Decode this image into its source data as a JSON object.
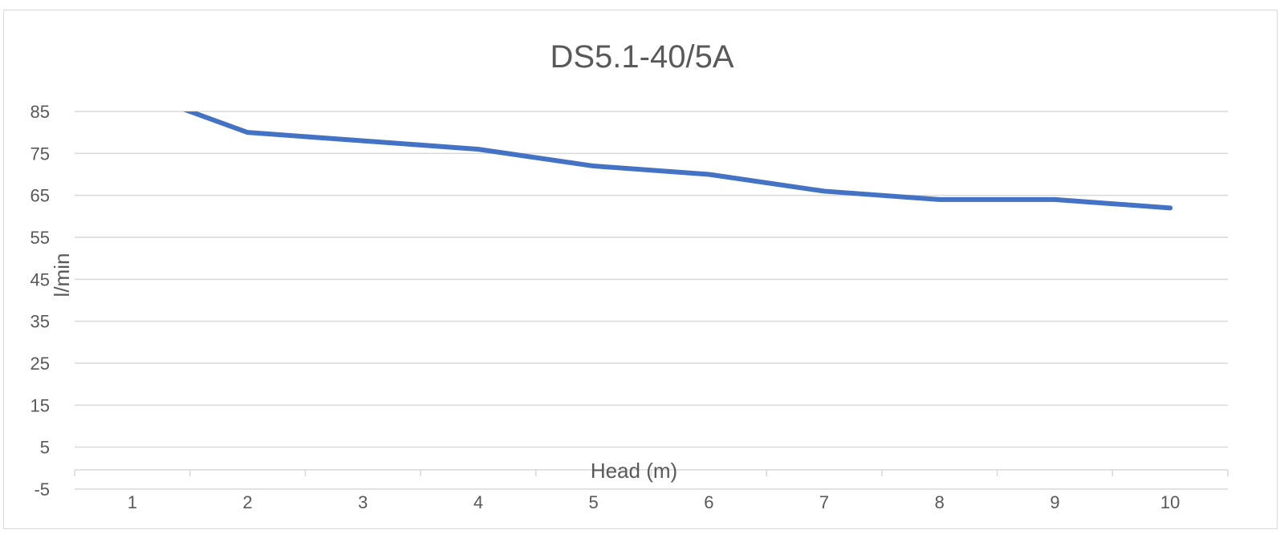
{
  "chart_data": {
    "type": "line",
    "title": "DS5.1-40/5A",
    "xlabel": "Head (m)",
    "ylabel": "l/min",
    "categories": [
      "1",
      "2",
      "3",
      "4",
      "5",
      "6",
      "7",
      "8",
      "9",
      "10"
    ],
    "series": [
      {
        "values": [
          90,
          80,
          78,
          76,
          72,
          70,
          66,
          64,
          64,
          62
        ],
        "color": "#4472c4"
      }
    ],
    "ylim": [
      -5,
      85
    ],
    "yticks": [
      "-5",
      "5",
      "15",
      "25",
      "35",
      "45",
      "55",
      "65",
      "75",
      "85"
    ],
    "grid": true,
    "legend": "none"
  }
}
